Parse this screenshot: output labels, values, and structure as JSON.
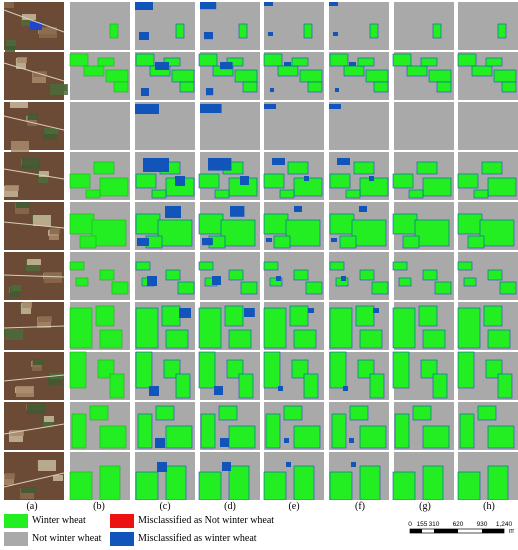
{
  "column_labels": [
    "(a)",
    "(b)",
    "(c)",
    "(d)",
    "(e)",
    "(f)",
    "(g)",
    "(h)"
  ],
  "legend": [
    {
      "label": "Winter wheat",
      "color": "#22ee22"
    },
    {
      "label": "Not winter wheat",
      "color": "#a9a9a9"
    },
    {
      "label": "Misclassified as Not winter wheat",
      "color": "#ee1111"
    },
    {
      "label": "Misclassified as winter wheat",
      "color": "#1155bb"
    }
  ],
  "scale_bar": {
    "ticks": [
      "0",
      "155",
      "310",
      "620",
      "930",
      "1,240"
    ],
    "unit": "m"
  },
  "colors": {
    "wheat": "#22ee22",
    "background": "#a9a9a9",
    "misclassified_wheat": "#1155bb",
    "misclassified_not": "#ee1111",
    "imagery": "#6b4a36"
  },
  "rows": 10,
  "columns": 8
}
